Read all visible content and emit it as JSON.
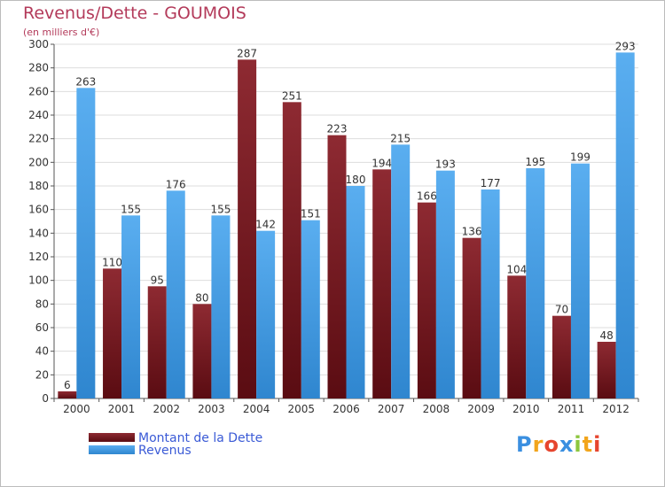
{
  "chart_data": {
    "type": "bar",
    "title": "Revenus/Dette - GOUMOIS",
    "subtitle": "(en milliers d'€)",
    "categories": [
      "2000",
      "2001",
      "2002",
      "2003",
      "2004",
      "2005",
      "2006",
      "2007",
      "2008",
      "2009",
      "2010",
      "2011",
      "2012"
    ],
    "series": [
      {
        "name": "Montant de la Dette",
        "values": [
          6,
          110,
          95,
          80,
          287,
          251,
          223,
          194,
          166,
          136,
          104,
          70,
          48
        ],
        "color": "#7a1b24"
      },
      {
        "name": "Revenus",
        "values": [
          263,
          155,
          176,
          155,
          142,
          151,
          180,
          215,
          193,
          177,
          195,
          199,
          293
        ],
        "color": "#3f9ee5"
      }
    ],
    "ylim": [
      0,
      300
    ],
    "yticks": [
      0,
      20,
      40,
      60,
      80,
      100,
      120,
      140,
      160,
      180,
      200,
      220,
      240,
      260,
      280,
      300
    ],
    "grid": true,
    "legend_position": "bottom-left"
  },
  "colors": {
    "title": "#b33a5a",
    "legend_text": "#3a5ad6",
    "grid": "#dddddd",
    "axis_text": "#333333"
  },
  "logo": {
    "letters": [
      "P",
      "r",
      "o",
      "x",
      "i",
      "t",
      "i"
    ],
    "colors": [
      "#3a8fe0",
      "#f2a51c",
      "#e6452e",
      "#3a8fe0",
      "#8cc63e",
      "#f2a51c",
      "#e6452e"
    ]
  }
}
